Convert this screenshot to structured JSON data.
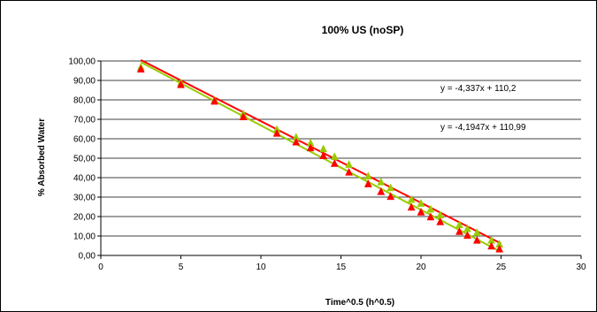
{
  "chart_data": {
    "type": "scatter",
    "title": "100% US (noSP)",
    "xlabel": "Time^0.5 (h^0.5)",
    "ylabel": "% Absorbed Water",
    "xlim": [
      0,
      30
    ],
    "ylim": [
      0,
      100
    ],
    "x_ticks": [
      0,
      5,
      10,
      15,
      20,
      25,
      30
    ],
    "x_tick_labels": [
      "0",
      "5",
      "10",
      "15",
      "20",
      "25",
      "30"
    ],
    "y_ticks": [
      0,
      10,
      20,
      30,
      40,
      50,
      60,
      70,
      80,
      90,
      100
    ],
    "y_tick_labels": [
      "0,00",
      "10,00",
      "20,00",
      "30,00",
      "40,00",
      "50,00",
      "60,00",
      "70,00",
      "80,00",
      "90,00",
      "100,00"
    ],
    "grid": "horizontal",
    "legend": "none",
    "series": [
      {
        "color": "#99cc00",
        "marker": "triangle",
        "x": [
          2.5,
          5.0,
          7.1,
          8.9,
          11.0,
          12.2,
          13.1,
          13.9,
          14.6,
          15.5,
          16.7,
          17.5,
          18.1,
          19.4,
          20.0,
          20.6,
          21.2,
          22.4,
          22.9,
          23.5,
          24.4,
          24.9
        ],
        "y": [
          97.0,
          89.0,
          80.0,
          73.0,
          65.0,
          61.0,
          58.0,
          55.0,
          51.0,
          47.0,
          41.0,
          38.0,
          35.0,
          29.0,
          27.0,
          24.0,
          21.0,
          16.0,
          14.0,
          12.0,
          8.0,
          6.0
        ]
      },
      {
        "color": "#ff0000",
        "marker": "triangle",
        "x": [
          2.5,
          5.0,
          7.1,
          8.9,
          11.0,
          12.2,
          13.1,
          13.9,
          14.6,
          15.5,
          16.7,
          17.5,
          18.1,
          19.4,
          20.0,
          20.6,
          21.2,
          22.4,
          22.9,
          23.5,
          24.4,
          24.9
        ],
        "y": [
          96.0,
          88.0,
          79.5,
          71.5,
          63.0,
          58.5,
          55.5,
          51.5,
          47.5,
          43.0,
          37.0,
          33.0,
          30.5,
          25.0,
          22.5,
          20.0,
          17.5,
          12.5,
          10.5,
          8.0,
          5.0,
          3.5
        ]
      }
    ],
    "trendlines": [
      {
        "color": "#99cc00",
        "slope": -4.337,
        "intercept": 110.2,
        "x_range": [
          2.5,
          25.0
        ],
        "equation": "y = -4,337x + 110,2"
      },
      {
        "color": "#ff0000",
        "slope": -4.1947,
        "intercept": 110.99,
        "x_range": [
          2.5,
          25.0
        ],
        "equation": "y = -4,1947x + 110,99"
      }
    ]
  }
}
